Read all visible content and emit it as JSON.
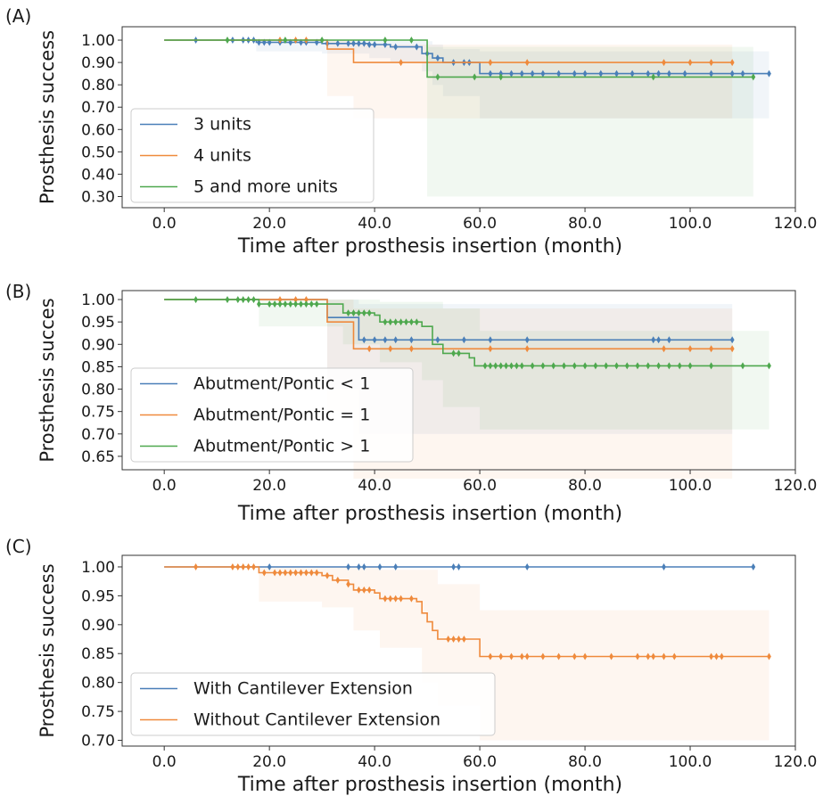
{
  "chart_data": [
    {
      "type": "line",
      "panel_label": "(A)",
      "xlabel": "Time after prosthesis insertion (month)",
      "ylabel": "Prosthesis success",
      "xlim": [
        -8,
        120
      ],
      "ylim": [
        0.25,
        1.06
      ],
      "x_ticks": [
        "0.0",
        "20.0",
        "40.0",
        "60.0",
        "80.0",
        "100.0",
        "120.0"
      ],
      "y_ticks": [
        "1.00",
        "0.90",
        "0.80",
        "0.70",
        "0.60",
        "0.50",
        "0.40",
        "0.30"
      ],
      "x_tick_values": [
        0,
        20,
        40,
        60,
        80,
        100,
        120
      ],
      "y_tick_values": [
        1.0,
        0.9,
        0.8,
        0.7,
        0.6,
        0.5,
        0.4,
        0.3
      ],
      "legend_position": "lower-left",
      "series": [
        {
          "name": "3 units",
          "color": "#4a7fb8",
          "steps": [
            [
              0,
              1.0
            ],
            [
              17.5,
              0.99
            ],
            [
              30,
              0.985
            ],
            [
              39,
              0.98
            ],
            [
              43,
              0.97
            ],
            [
              49,
              0.94
            ],
            [
              51,
              0.92
            ],
            [
              53,
              0.9
            ],
            [
              60,
              0.85
            ],
            [
              115,
              0.85
            ]
          ],
          "ci_lower": [
            [
              0,
              1.0
            ],
            [
              17.5,
              0.95
            ],
            [
              30,
              0.94
            ],
            [
              39,
              0.92
            ],
            [
              43,
              0.9
            ],
            [
              49,
              0.86
            ],
            [
              51,
              0.8
            ],
            [
              53,
              0.75
            ],
            [
              60,
              0.65
            ],
            [
              115,
              0.65
            ]
          ],
          "ci_upper": [
            [
              0,
              1.0
            ],
            [
              17.5,
              1.0
            ],
            [
              43,
              0.995
            ],
            [
              51,
              0.98
            ],
            [
              53,
              0.96
            ],
            [
              60,
              0.95
            ],
            [
              115,
              0.95
            ]
          ],
          "censored": [
            6,
            13,
            15,
            16,
            17,
            18,
            19,
            20,
            22,
            24,
            26,
            27,
            29,
            31,
            33,
            35,
            36,
            37,
            38,
            39,
            40,
            42,
            44,
            48,
            50,
            52,
            55,
            57,
            58,
            62,
            64,
            66,
            68,
            70,
            72,
            75,
            78,
            80,
            83,
            86,
            89,
            92,
            94,
            96,
            99,
            104,
            108,
            110,
            115
          ]
        },
        {
          "name": "4 units",
          "color": "#ef8a3c",
          "steps": [
            [
              0,
              1.0
            ],
            [
              31,
              0.96
            ],
            [
              36,
              0.9
            ],
            [
              108,
              0.9
            ]
          ],
          "ci_lower": [
            [
              0,
              1.0
            ],
            [
              31,
              0.75
            ],
            [
              36,
              0.65
            ],
            [
              108,
              0.65
            ]
          ],
          "ci_upper": [
            [
              0,
              1.0
            ],
            [
              31,
              1.0
            ],
            [
              36,
              0.98
            ],
            [
              108,
              0.98
            ]
          ],
          "censored": [
            22,
            25,
            27,
            45,
            62,
            69,
            95,
            100,
            104,
            108
          ]
        },
        {
          "name": "5 and more units",
          "color": "#4ea84e",
          "steps": [
            [
              0,
              1.0
            ],
            [
              50,
              0.835
            ],
            [
              112,
              0.835
            ]
          ],
          "ci_lower": [
            [
              0,
              1.0
            ],
            [
              50,
              0.3
            ],
            [
              112,
              0.3
            ]
          ],
          "ci_upper": [
            [
              0,
              1.0
            ],
            [
              50,
              0.97
            ],
            [
              112,
              0.97
            ]
          ],
          "censored": [
            12,
            23,
            30,
            42,
            47,
            52,
            59,
            64,
            93,
            112
          ]
        }
      ]
    },
    {
      "type": "line",
      "panel_label": "(B)",
      "xlabel": "Time after prosthesis insertion (month)",
      "ylabel": "Prosthesis succes",
      "xlim": [
        -8,
        120
      ],
      "ylim": [
        0.62,
        1.02
      ],
      "x_ticks": [
        "0.0",
        "20.0",
        "40.0",
        "60.0",
        "80.0",
        "100.0",
        "120.0"
      ],
      "y_ticks": [
        "1.00",
        "0.95",
        "0.90",
        "0.85",
        "0.80",
        "0.75",
        "0.70",
        "0.65"
      ],
      "x_tick_values": [
        0,
        20,
        40,
        60,
        80,
        100,
        120
      ],
      "y_tick_values": [
        1.0,
        0.95,
        0.9,
        0.85,
        0.8,
        0.75,
        0.7,
        0.65
      ],
      "legend_position": "lower-left",
      "series": [
        {
          "name": "Abutment/Pontic < 1",
          "color": "#4a7fb8",
          "steps": [
            [
              0,
              1.0
            ],
            [
              31,
              0.96
            ],
            [
              37,
              0.91
            ],
            [
              108,
              0.91
            ]
          ],
          "ci_lower": [
            [
              0,
              1.0
            ],
            [
              31,
              0.8
            ],
            [
              37,
              0.7
            ],
            [
              108,
              0.7
            ]
          ],
          "ci_upper": [
            [
              0,
              1.0
            ],
            [
              37,
              0.99
            ],
            [
              108,
              0.99
            ]
          ],
          "censored": [
            38,
            40,
            42,
            44,
            47,
            52,
            57,
            62,
            69,
            93,
            94,
            96,
            108
          ]
        },
        {
          "name": "Abutment/Pontic = 1",
          "color": "#ef8a3c",
          "steps": [
            [
              0,
              1.0
            ],
            [
              31,
              0.95
            ],
            [
              36,
              0.89
            ],
            [
              108,
              0.89
            ]
          ],
          "ci_lower": [
            [
              0,
              1.0
            ],
            [
              31,
              0.75
            ],
            [
              36,
              0.6
            ],
            [
              108,
              0.6
            ]
          ],
          "ci_upper": [
            [
              0,
              1.0
            ],
            [
              36,
              0.98
            ],
            [
              108,
              0.98
            ]
          ],
          "censored": [
            22,
            25,
            27,
            39,
            43,
            47,
            62,
            69,
            95,
            100,
            104,
            108
          ]
        },
        {
          "name": "Abutment/Pontic > 1",
          "color": "#4ea84e",
          "steps": [
            [
              0,
              1.0
            ],
            [
              18,
              0.99
            ],
            [
              34,
              0.97
            ],
            [
              40,
              0.965
            ],
            [
              41,
              0.95
            ],
            [
              49,
              0.94
            ],
            [
              51,
              0.9
            ],
            [
              53,
              0.88
            ],
            [
              58,
              0.87
            ],
            [
              59,
              0.852
            ],
            [
              115,
              0.852
            ]
          ],
          "ci_lower": [
            [
              0,
              1.0
            ],
            [
              18,
              0.94
            ],
            [
              34,
              0.9
            ],
            [
              41,
              0.86
            ],
            [
              49,
              0.82
            ],
            [
              53,
              0.76
            ],
            [
              60,
              0.71
            ],
            [
              115,
              0.71
            ]
          ],
          "ci_upper": [
            [
              0,
              1.0
            ],
            [
              18,
              1.0
            ],
            [
              41,
              0.995
            ],
            [
              53,
              0.98
            ],
            [
              60,
              0.93
            ],
            [
              115,
              0.93
            ]
          ],
          "censored": [
            6,
            12,
            14,
            15,
            16,
            17,
            18,
            20,
            21,
            22,
            23,
            24,
            25,
            26,
            27,
            28,
            29,
            35,
            36,
            37,
            38,
            39,
            42,
            43,
            44,
            45,
            46,
            47,
            48,
            55,
            56,
            61,
            62,
            63,
            64,
            65,
            66,
            67,
            68,
            70,
            72,
            74,
            76,
            78,
            80,
            82,
            84,
            86,
            88,
            90,
            92,
            94,
            96,
            98,
            100,
            104,
            110,
            115
          ]
        }
      ]
    },
    {
      "type": "line",
      "panel_label": "(C)",
      "xlabel": "Time after prosthesis insertion (month)",
      "ylabel": "Prosthesis success",
      "xlim": [
        -8,
        120
      ],
      "ylim": [
        0.69,
        1.02
      ],
      "x_ticks": [
        "0.0",
        "20.0",
        "40.0",
        "60.0",
        "80.0",
        "100.0",
        "120.0"
      ],
      "y_ticks": [
        "1.00",
        "0.95",
        "0.90",
        "0.85",
        "0.80",
        "0.75",
        "0.70"
      ],
      "x_tick_values": [
        0,
        20,
        40,
        60,
        80,
        100,
        120
      ],
      "y_tick_values": [
        1.0,
        0.95,
        0.9,
        0.85,
        0.8,
        0.75,
        0.7
      ],
      "legend_position": "lower-left",
      "series": [
        {
          "name": "With Cantilever Extension",
          "color": "#4a7fb8",
          "steps": [
            [
              0,
              1.0
            ],
            [
              112,
              1.0
            ]
          ],
          "ci_lower": [
            [
              0,
              1.0
            ],
            [
              112,
              1.0
            ]
          ],
          "ci_upper": [
            [
              0,
              1.0
            ],
            [
              112,
              1.0
            ]
          ],
          "censored": [
            20,
            35,
            37,
            38,
            41,
            44,
            55,
            56,
            69,
            95,
            112
          ]
        },
        {
          "name": "Without Cantilever Extension",
          "color": "#ef8a3c",
          "steps": [
            [
              0,
              1.0
            ],
            [
              18,
              0.99
            ],
            [
              30,
              0.985
            ],
            [
              32,
              0.977
            ],
            [
              35,
              0.97
            ],
            [
              36,
              0.96
            ],
            [
              40,
              0.955
            ],
            [
              41,
              0.945
            ],
            [
              48,
              0.94
            ],
            [
              49,
              0.92
            ],
            [
              50,
              0.905
            ],
            [
              51,
              0.89
            ],
            [
              52,
              0.875
            ],
            [
              60,
              0.845
            ],
            [
              115,
              0.845
            ]
          ],
          "ci_lower": [
            [
              0,
              1.0
            ],
            [
              18,
              0.94
            ],
            [
              30,
              0.93
            ],
            [
              36,
              0.89
            ],
            [
              41,
              0.86
            ],
            [
              49,
              0.8
            ],
            [
              52,
              0.76
            ],
            [
              60,
              0.7
            ],
            [
              115,
              0.7
            ]
          ],
          "ci_upper": [
            [
              0,
              1.0
            ],
            [
              41,
              0.995
            ],
            [
              52,
              0.97
            ],
            [
              60,
              0.925
            ],
            [
              115,
              0.925
            ]
          ],
          "censored": [
            6,
            13,
            14,
            15,
            16,
            17,
            19,
            21,
            22,
            23,
            24,
            25,
            26,
            27,
            28,
            29,
            31,
            33,
            35,
            37,
            38,
            39,
            42,
            43,
            44,
            45,
            47,
            54,
            55,
            56,
            57,
            62,
            64,
            66,
            68,
            69,
            72,
            75,
            78,
            80,
            85,
            90,
            92,
            93,
            95,
            97,
            104,
            105,
            106,
            115
          ]
        }
      ]
    }
  ]
}
